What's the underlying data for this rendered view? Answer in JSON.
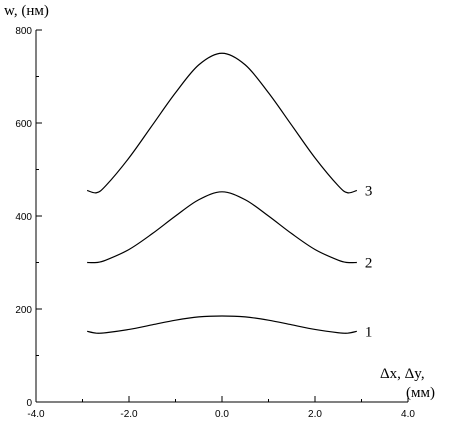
{
  "chart_data": {
    "type": "line",
    "xlabel_line1": "Δx, Δy,",
    "xlabel_line2": "(мм)",
    "ylabel": "w, (нм)",
    "xlim": [
      -4.0,
      4.0
    ],
    "ylim": [
      0,
      800
    ],
    "x_ticks": [
      -4.0,
      -2.0,
      0.0,
      2.0,
      4.0
    ],
    "x_tick_labels": [
      "-4.0",
      "-2.0",
      "0.0",
      "2.0",
      "4.0"
    ],
    "y_ticks": [
      0,
      200,
      400,
      600,
      800
    ],
    "y_tick_labels": [
      "0",
      "200",
      "400",
      "600",
      "800"
    ],
    "series": [
      {
        "name": "1",
        "x": [
          -2.9,
          -2.7,
          -2.5,
          -2.0,
          -1.5,
          -1.0,
          -0.5,
          0.0,
          0.5,
          1.0,
          1.5,
          2.0,
          2.5,
          2.7,
          2.9
        ],
        "y": [
          152,
          148,
          149,
          156,
          166,
          176,
          183,
          185,
          183,
          176,
          166,
          156,
          149,
          148,
          152
        ]
      },
      {
        "name": "2",
        "x": [
          -2.9,
          -2.7,
          -2.5,
          -2.0,
          -1.5,
          -1.0,
          -0.5,
          0.0,
          0.5,
          1.0,
          1.5,
          2.0,
          2.5,
          2.7,
          2.9
        ],
        "y": [
          300,
          300,
          305,
          328,
          362,
          400,
          435,
          452,
          435,
          400,
          362,
          328,
          305,
          300,
          300
        ]
      },
      {
        "name": "3",
        "x": [
          -2.9,
          -2.7,
          -2.5,
          -2.0,
          -1.5,
          -1.0,
          -0.5,
          0.0,
          0.5,
          1.0,
          1.5,
          2.0,
          2.5,
          2.7,
          2.9
        ],
        "y": [
          455,
          450,
          465,
          525,
          595,
          665,
          725,
          750,
          725,
          665,
          595,
          525,
          465,
          450,
          455
        ]
      }
    ]
  }
}
